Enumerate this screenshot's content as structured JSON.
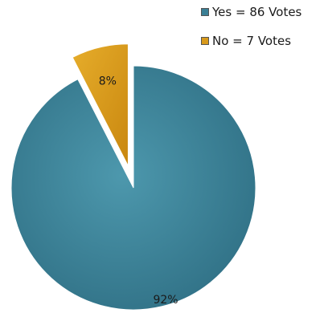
{
  "chart_data": {
    "type": "pie",
    "categories": [
      "Yes",
      "No"
    ],
    "values": [
      86,
      7
    ],
    "percent_labels": [
      "92%",
      "8%"
    ],
    "colors": [
      "#3a7f95",
      "#d89a1b"
    ],
    "exploded": [
      "No"
    ],
    "legend": {
      "placement": "top-right",
      "entries": [
        "Yes  =  86 Votes",
        "No  =  7 Votes"
      ]
    }
  }
}
